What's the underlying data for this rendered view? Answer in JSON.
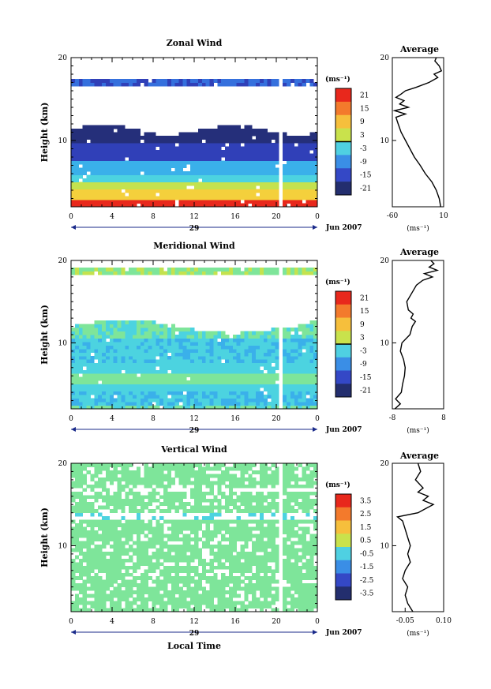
{
  "figure": {
    "date_label": "Jun 2007",
    "xlabel": "Local Time",
    "day_label": "29"
  },
  "chart_data": [
    {
      "type": "heatmap",
      "title": "Zonal Wind",
      "ylabel": "Height (km)",
      "xlim": [
        0,
        24
      ],
      "ylim": [
        2,
        20
      ],
      "xticks": [
        "0",
        "4",
        "8",
        "12",
        "16",
        "20",
        "0"
      ],
      "yticks": [
        "10",
        "20"
      ],
      "colorbar": {
        "unit": "(ms⁻¹)",
        "ticks": [
          "21",
          "15",
          "9",
          "3",
          "-3",
          "-9",
          "-15",
          "-21"
        ],
        "range": [
          -24,
          24
        ]
      },
      "profile": {
        "title": "Average",
        "xlabel": "(ms⁻¹)",
        "xlim": [
          -60,
          10
        ],
        "xticks": [
          "-60",
          "10"
        ],
        "yticks": [
          "10",
          "20"
        ],
        "points": [
          {
            "h": 2.0,
            "v": 6
          },
          {
            "h": 3.0,
            "v": 4
          },
          {
            "h": 4.0,
            "v": 0
          },
          {
            "h": 5.0,
            "v": -6
          },
          {
            "h": 6.0,
            "v": -15
          },
          {
            "h": 7.0,
            "v": -22
          },
          {
            "h": 8.0,
            "v": -30
          },
          {
            "h": 9.0,
            "v": -36
          },
          {
            "h": 10.0,
            "v": -42
          },
          {
            "h": 11.0,
            "v": -48
          },
          {
            "h": 12.0,
            "v": -52
          },
          {
            "h": 12.8,
            "v": -55
          },
          {
            "h": 13.2,
            "v": -42
          },
          {
            "h": 13.6,
            "v": -57
          },
          {
            "h": 14.0,
            "v": -38
          },
          {
            "h": 14.4,
            "v": -50
          },
          {
            "h": 14.8,
            "v": -44
          },
          {
            "h": 15.2,
            "v": -55
          },
          {
            "h": 15.6,
            "v": -48
          },
          {
            "h": 16.0,
            "v": -42
          },
          {
            "h": 16.4,
            "v": -28
          },
          {
            "h": 17.0,
            "v": -10
          },
          {
            "h": 17.6,
            "v": 2
          },
          {
            "h": 18.0,
            "v": -3
          },
          {
            "h": 18.4,
            "v": 7
          },
          {
            "h": 19.0,
            "v": 4
          },
          {
            "h": 19.6,
            "v": -2
          },
          {
            "h": 20.0,
            "v": 0
          }
        ]
      }
    },
    {
      "type": "heatmap",
      "title": "Meridional Wind",
      "ylabel": "Height (km)",
      "xlim": [
        0,
        24
      ],
      "ylim": [
        2,
        20
      ],
      "xticks": [
        "0",
        "4",
        "8",
        "12",
        "16",
        "20",
        "0"
      ],
      "yticks": [
        "10",
        "20"
      ],
      "colorbar": {
        "unit": "(ms⁻¹)",
        "ticks": [
          "21",
          "15",
          "9",
          "3",
          "-3",
          "-9",
          "-15",
          "-21"
        ],
        "range": [
          -24,
          24
        ]
      },
      "profile": {
        "title": "Average",
        "xlabel": "(ms⁻¹)",
        "xlim": [
          -8,
          8
        ],
        "xticks": [
          "-8",
          "8"
        ],
        "yticks": [
          "10",
          "20"
        ],
        "points": [
          {
            "h": 2.0,
            "v": -7.2
          },
          {
            "h": 2.6,
            "v": -5.5
          },
          {
            "h": 3.2,
            "v": -7.0
          },
          {
            "h": 4.0,
            "v": -5.2
          },
          {
            "h": 5.0,
            "v": -4.8
          },
          {
            "h": 6.0,
            "v": -4.2
          },
          {
            "h": 7.0,
            "v": -4.0
          },
          {
            "h": 8.0,
            "v": -4.5
          },
          {
            "h": 9.0,
            "v": -5.5
          },
          {
            "h": 10.0,
            "v": -5.0
          },
          {
            "h": 11.0,
            "v": -2.5
          },
          {
            "h": 12.0,
            "v": -1.8
          },
          {
            "h": 12.6,
            "v": -0.8
          },
          {
            "h": 13.0,
            "v": -2.2
          },
          {
            "h": 13.5,
            "v": -1.5
          },
          {
            "h": 14.0,
            "v": -3.0
          },
          {
            "h": 15.0,
            "v": -3.5
          },
          {
            "h": 16.0,
            "v": -2.0
          },
          {
            "h": 17.0,
            "v": -0.5
          },
          {
            "h": 17.6,
            "v": 1.5
          },
          {
            "h": 18.0,
            "v": 4.5
          },
          {
            "h": 18.4,
            "v": 2.0
          },
          {
            "h": 18.8,
            "v": 6.0
          },
          {
            "h": 19.2,
            "v": 3.5
          },
          {
            "h": 19.6,
            "v": 5.0
          },
          {
            "h": 20.0,
            "v": 4.0
          }
        ]
      }
    },
    {
      "type": "heatmap",
      "title": "Vertical Wind",
      "ylabel": "Height (km)",
      "xlim": [
        0,
        24
      ],
      "ylim": [
        2,
        20
      ],
      "xticks": [
        "0",
        "4",
        "8",
        "12",
        "16",
        "20",
        "0"
      ],
      "yticks": [
        "10",
        "20"
      ],
      "colorbar": {
        "unit": "(ms⁻¹)",
        "ticks": [
          "3.5",
          "2.5",
          "1.5",
          "0.5",
          "-0.5",
          "-1.5",
          "-2.5",
          "-3.5"
        ],
        "range": [
          -4,
          4
        ]
      },
      "profile": {
        "title": "Average",
        "xlabel": "(ms⁻¹)",
        "xlim": [
          -0.1,
          0.1
        ],
        "xticks": [
          "-0.05",
          "0.10"
        ],
        "xtick_values": [
          -0.05,
          0.1
        ],
        "yticks": [
          "10",
          "20"
        ],
        "points": [
          {
            "h": 2.0,
            "v": -0.02
          },
          {
            "h": 3.0,
            "v": -0.04
          },
          {
            "h": 4.0,
            "v": -0.05
          },
          {
            "h": 5.0,
            "v": -0.04
          },
          {
            "h": 6.0,
            "v": -0.06
          },
          {
            "h": 7.0,
            "v": -0.05
          },
          {
            "h": 8.0,
            "v": -0.03
          },
          {
            "h": 9.0,
            "v": -0.04
          },
          {
            "h": 10.0,
            "v": -0.03
          },
          {
            "h": 11.0,
            "v": -0.04
          },
          {
            "h": 12.0,
            "v": -0.05
          },
          {
            "h": 13.0,
            "v": -0.06
          },
          {
            "h": 13.5,
            "v": -0.08
          },
          {
            "h": 14.0,
            "v": 0.0
          },
          {
            "h": 14.5,
            "v": 0.03
          },
          {
            "h": 15.0,
            "v": 0.06
          },
          {
            "h": 15.5,
            "v": 0.02
          },
          {
            "h": 16.0,
            "v": 0.04
          },
          {
            "h": 16.5,
            "v": 0.0
          },
          {
            "h": 17.0,
            "v": 0.02
          },
          {
            "h": 18.0,
            "v": -0.01
          },
          {
            "h": 19.0,
            "v": 0.01
          },
          {
            "h": 20.0,
            "v": 0.0
          }
        ]
      }
    }
  ]
}
